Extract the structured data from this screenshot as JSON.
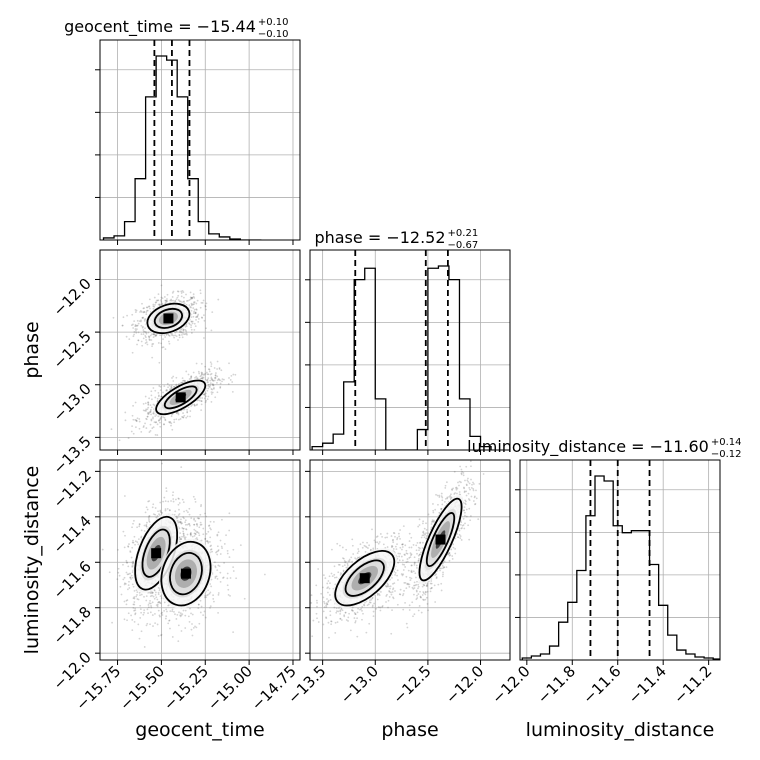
{
  "chart_data": {
    "type": "corner",
    "parameters": [
      "geocent_time",
      "phase",
      "luminosity_distance"
    ],
    "axis_labels": {
      "geocent_time": "geocent_time",
      "phase": "phase",
      "luminosity_distance": "luminosity_distance"
    },
    "titles": [
      {
        "param": "geocent_time",
        "text": "geocent_time = −15.44",
        "plus": "+0.10",
        "minus": "−0.10"
      },
      {
        "param": "phase",
        "text": "phase = −12.52",
        "plus": "+0.21",
        "minus": "−0.67"
      },
      {
        "param": "luminosity_distance",
        "text": "luminosity_distance = −11.60",
        "plus": "+0.14",
        "minus": "−0.12"
      }
    ],
    "ranges": {
      "geocent_time": [
        -15.85,
        -14.71
      ],
      "phase": [
        -13.62,
        -11.72
      ],
      "luminosity_distance": [
        -12.03,
        -11.15
      ]
    },
    "ticks": {
      "geocent_time": {
        "values": [
          -15.75,
          -15.5,
          -15.25,
          -15.0,
          -14.75
        ],
        "labels": [
          "−15.75",
          "−15.50",
          "−15.25",
          "−15.00",
          "−14.75"
        ]
      },
      "phase": {
        "values": [
          -13.5,
          -13.0,
          -12.5,
          -12.0
        ],
        "labels": [
          "−13.5",
          "−13.0",
          "−12.5",
          "−12.0"
        ]
      },
      "luminosity_distance": {
        "values": [
          -12.0,
          -11.8,
          -11.6,
          -11.4,
          -11.2
        ],
        "labels": [
          "−12.0",
          "−11.8",
          "−11.6",
          "−11.4",
          "−11.2"
        ]
      }
    },
    "quantiles": {
      "geocent_time": [
        -15.54,
        -15.44,
        -15.34
      ],
      "phase": [
        -13.19,
        -12.52,
        -12.31
      ],
      "luminosity_distance": [
        -11.72,
        -11.6,
        -11.46
      ]
    },
    "histograms": {
      "geocent_time": {
        "edges": [
          -15.83,
          -15.77,
          -15.71,
          -15.65,
          -15.59,
          -15.53,
          -15.47,
          -15.41,
          -15.35,
          -15.29,
          -15.23,
          -15.17,
          -15.11,
          -15.05,
          -14.99,
          -14.93
        ],
        "counts": [
          2,
          4,
          18,
          60,
          140,
          180,
          176,
          140,
          60,
          18,
          6,
          3,
          1,
          0,
          0
        ]
      },
      "phase": {
        "edges": [
          -13.6,
          -13.5,
          -13.4,
          -13.3,
          -13.2,
          -13.1,
          -13.0,
          -12.9,
          -12.8,
          -12.7,
          -12.6,
          -12.5,
          -12.4,
          -12.3,
          -12.2,
          -12.1,
          -12.0,
          -11.9
        ],
        "counts": [
          3,
          6,
          14,
          60,
          150,
          160,
          45,
          0,
          0,
          0,
          18,
          160,
          162,
          150,
          45,
          12,
          3
        ]
      },
      "luminosity_distance": {
        "edges": [
          -12.02,
          -11.98,
          -11.94,
          -11.9,
          -11.86,
          -11.82,
          -11.78,
          -11.74,
          -11.7,
          -11.66,
          -11.62,
          -11.58,
          -11.54,
          -11.5,
          -11.46,
          -11.42,
          -11.38,
          -11.34,
          -11.3,
          -11.26,
          -11.22,
          -11.18,
          -11.15
        ],
        "counts": [
          2,
          4,
          6,
          14,
          38,
          58,
          90,
          145,
          185,
          180,
          135,
          128,
          130,
          130,
          96,
          55,
          25,
          10,
          6,
          3,
          2,
          1
        ]
      }
    },
    "modes_2d": {
      "geocent_time|phase": [
        {
          "cx": -15.46,
          "cy": -12.37,
          "sx": 0.06,
          "sy": 0.07,
          "rho": 0.3
        },
        {
          "cx": -15.39,
          "cy": -13.12,
          "sx": 0.07,
          "sy": 0.08,
          "rho": 0.7
        }
      ],
      "geocent_time|luminosity_distance": [
        {
          "cx": -15.53,
          "cy": -11.56,
          "sx": 0.06,
          "sy": 0.08,
          "rho": 0.5
        },
        {
          "cx": -15.36,
          "cy": -11.65,
          "sx": 0.07,
          "sy": 0.07,
          "rho": 0.2
        }
      ],
      "phase|luminosity_distance": [
        {
          "cx": -13.1,
          "cy": -11.67,
          "sx": 0.14,
          "sy": 0.06,
          "rho": 0.6
        },
        {
          "cx": -12.38,
          "cy": -11.5,
          "sx": 0.1,
          "sy": 0.09,
          "rho": 0.8
        }
      ]
    },
    "grid": true,
    "colors": {
      "line": "#000000",
      "grid": "#b0b0b0",
      "samples": "#555555"
    }
  }
}
